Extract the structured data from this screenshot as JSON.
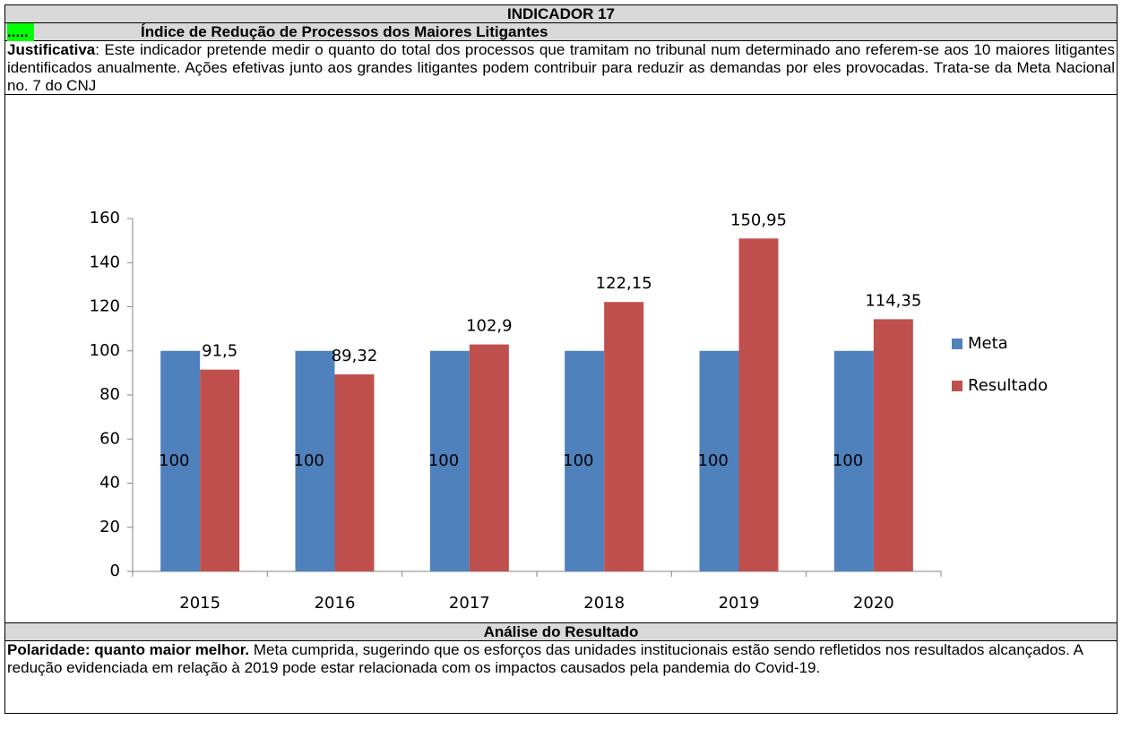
{
  "header": {
    "title": "INDICADOR 17",
    "marker": ".....",
    "subtitle": "Índice de Redução de Processos dos Maiores Litigantes"
  },
  "justification": {
    "label": "Justificativa",
    "text": ": Este indicador pretende medir o quanto do total dos processos que tramitam no tribunal num determinado ano referem-se aos 10 maiores litigantes identificados anualmente.  Ações efetivas junto aos grandes litigantes podem contribuir para reduzir as demandas por eles provocadas. Trata-se da Meta Nacional no. 7 do CNJ"
  },
  "chart_data": {
    "type": "bar",
    "categories": [
      "2015",
      "2016",
      "2017",
      "2018",
      "2019",
      "2020"
    ],
    "series": [
      {
        "name": "Meta",
        "color": "#4f81bd",
        "values": [
          100,
          100,
          100,
          100,
          100,
          100
        ]
      },
      {
        "name": "Resultado",
        "color": "#c0504d",
        "values": [
          91.5,
          89.32,
          102.9,
          122.15,
          150.95,
          114.35
        ],
        "value_labels": [
          "91,5",
          "89,32",
          "102,9",
          "122,15",
          "150,95",
          "114,35"
        ]
      }
    ],
    "ylim": [
      0,
      160
    ],
    "yticks": [
      0,
      20,
      40,
      60,
      80,
      100,
      120,
      140,
      160
    ],
    "legend": "right"
  },
  "analysis": {
    "title": "Análise do Resultado",
    "lead": "Polaridade: quanto maior melhor.",
    "text": " Meta cumprida, sugerindo que os esforços das unidades institucionais estão sendo refletidos nos resultados alcançados. A redução evidenciada em relação à 2019 pode estar relacionada com os impactos causados pela pandemia do Covid-19."
  }
}
